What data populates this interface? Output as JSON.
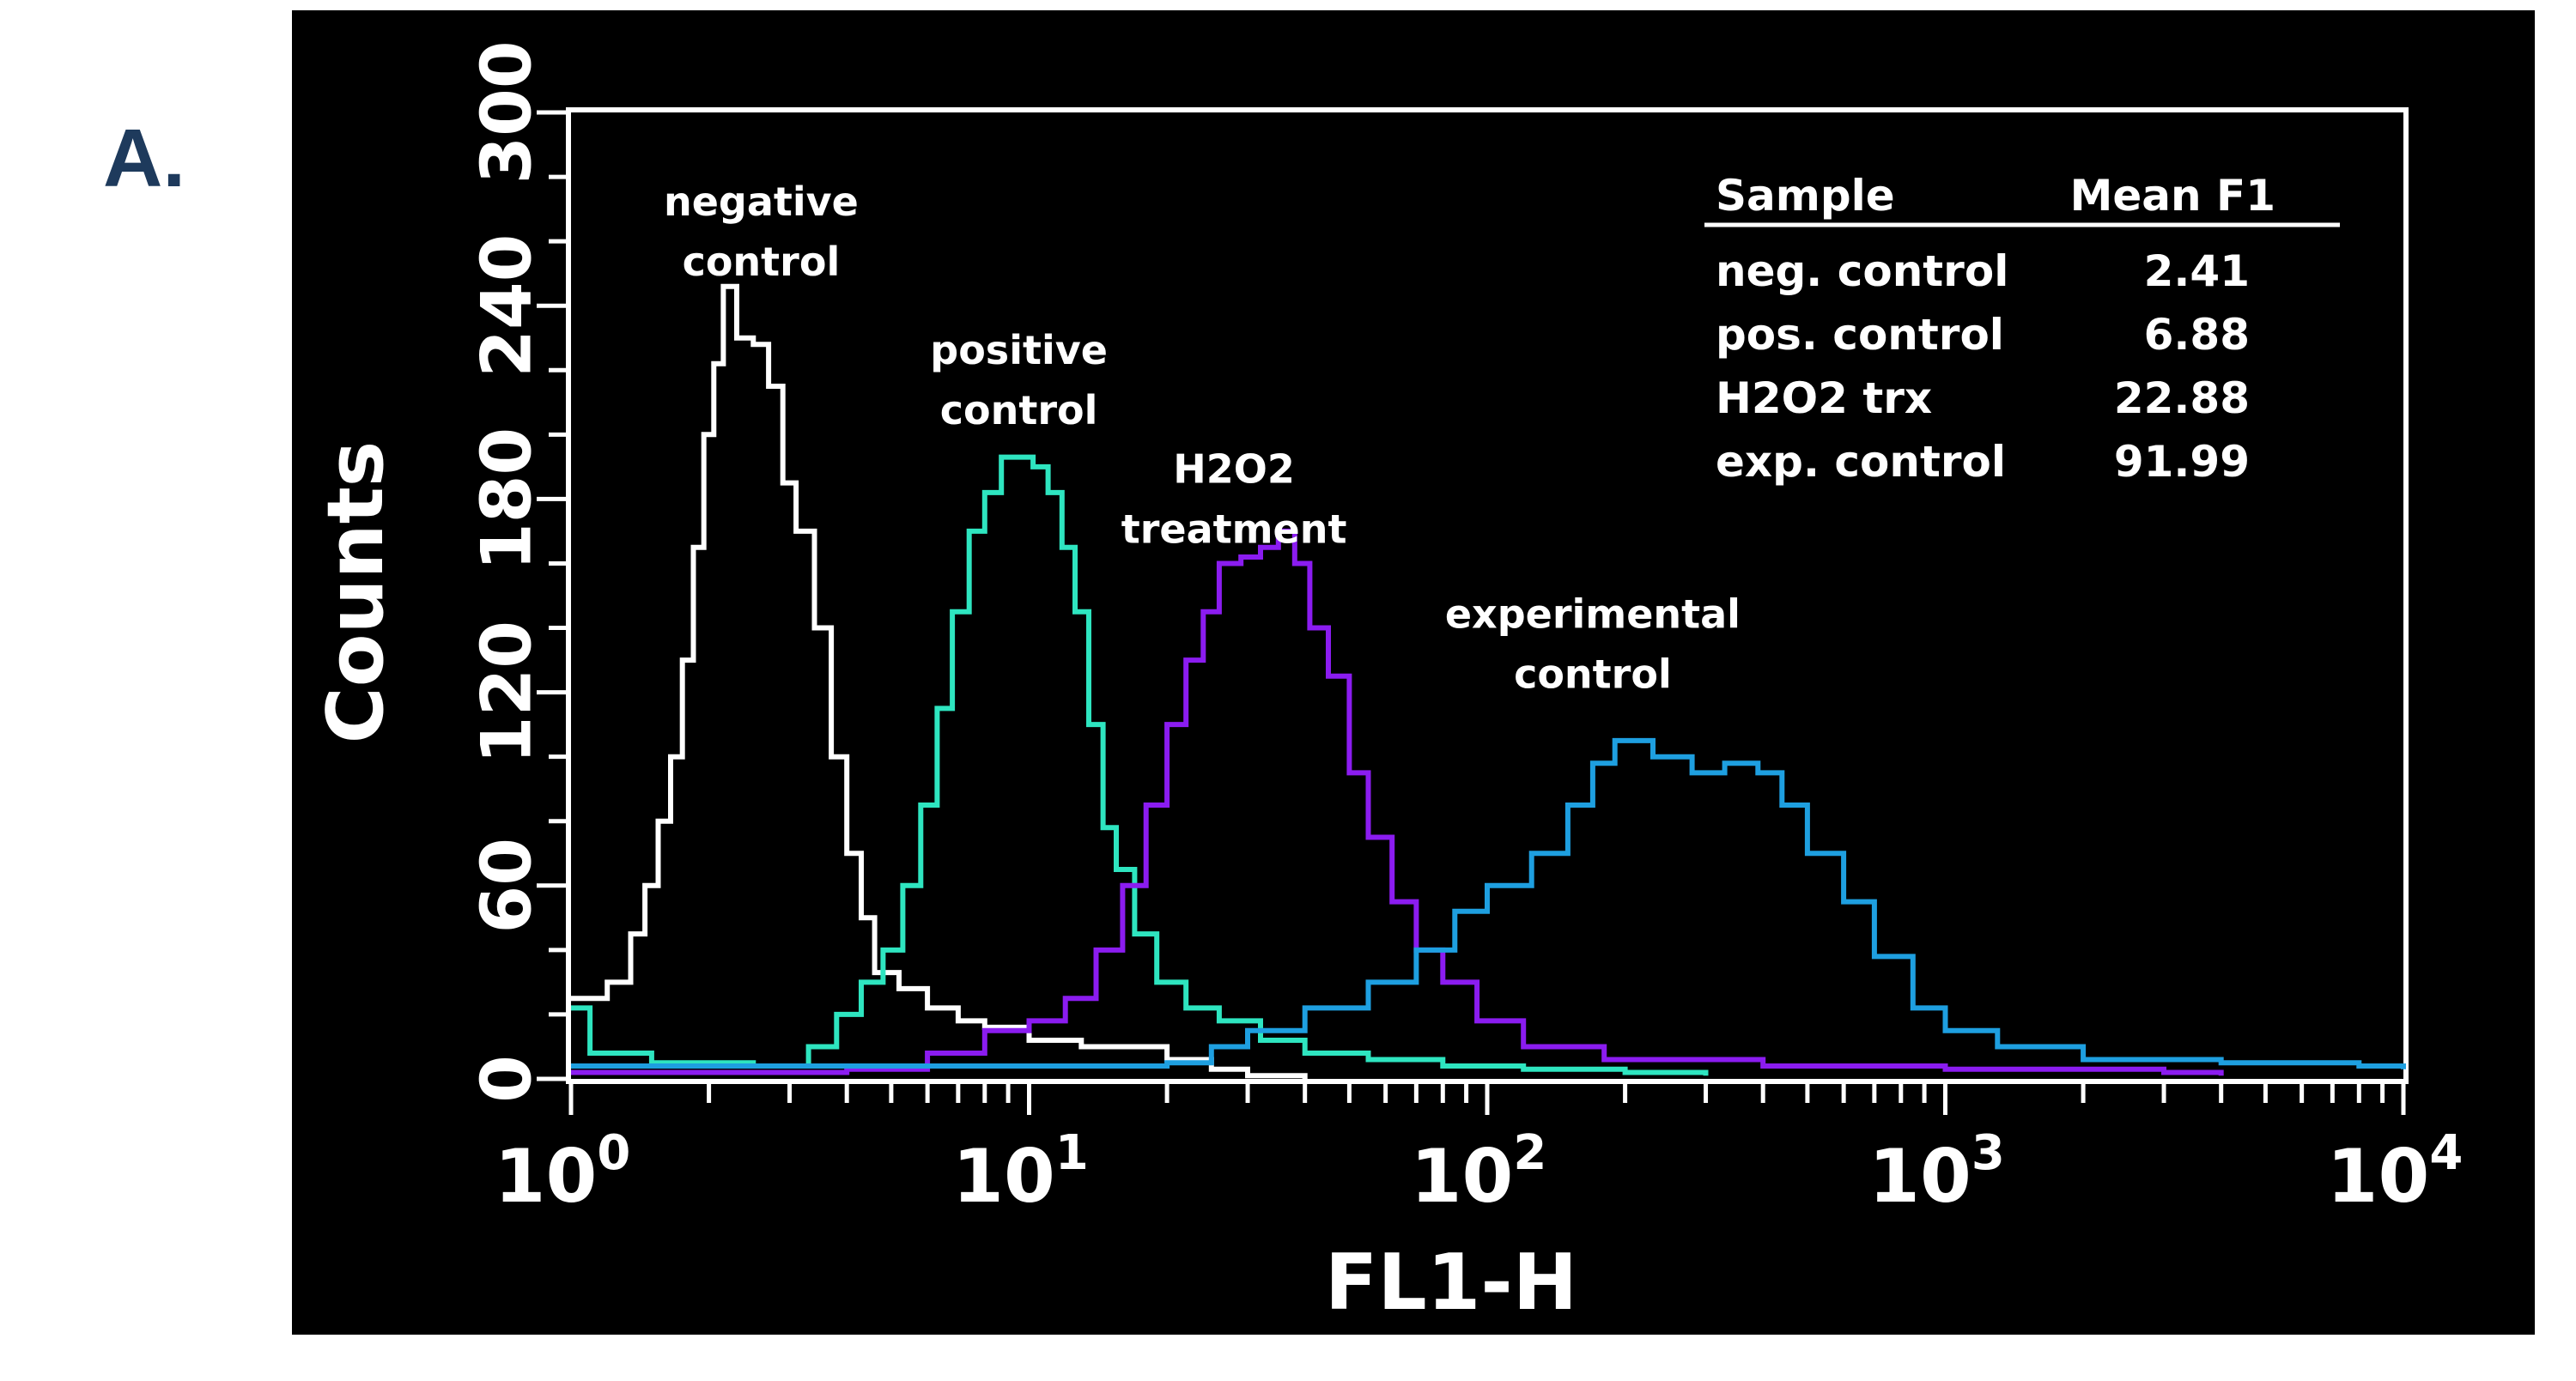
{
  "panel_label": "A.",
  "chart_data": {
    "type": "line",
    "xlabel": "FL1-H",
    "ylabel": "Counts",
    "xscale": "log",
    "xlim": [
      1,
      10000
    ],
    "ylim": [
      0,
      300
    ],
    "yticks": [
      0,
      60,
      120,
      180,
      240,
      300
    ],
    "xticks": [
      1,
      10,
      100,
      1000,
      10000
    ],
    "xtick_labels": [
      {
        "base": "10",
        "exp": "0"
      },
      {
        "base": "10",
        "exp": "1"
      },
      {
        "base": "10",
        "exp": "2"
      },
      {
        "base": "10",
        "exp": "3"
      },
      {
        "base": "10",
        "exp": "4"
      }
    ],
    "background": "#000000",
    "grid": false,
    "series": [
      {
        "name": "negative control",
        "color": "#ffffff",
        "label_lines": [
          "negative",
          "control"
        ],
        "label_anchor": [
          2.6,
          268
        ],
        "points": [
          [
            1.0,
            25
          ],
          [
            1.2,
            30
          ],
          [
            1.35,
            45
          ],
          [
            1.45,
            60
          ],
          [
            1.55,
            80
          ],
          [
            1.65,
            100
          ],
          [
            1.75,
            130
          ],
          [
            1.85,
            165
          ],
          [
            1.95,
            200
          ],
          [
            2.05,
            222
          ],
          [
            2.15,
            246
          ],
          [
            2.3,
            230
          ],
          [
            2.5,
            228
          ],
          [
            2.7,
            215
          ],
          [
            2.9,
            185
          ],
          [
            3.1,
            170
          ],
          [
            3.4,
            140
          ],
          [
            3.7,
            100
          ],
          [
            4.0,
            70
          ],
          [
            4.3,
            50
          ],
          [
            4.6,
            33
          ],
          [
            5.2,
            28
          ],
          [
            6.0,
            22
          ],
          [
            7.0,
            18
          ],
          [
            8.0,
            16
          ],
          [
            10.0,
            12
          ],
          [
            13.0,
            10
          ],
          [
            16.0,
            10
          ],
          [
            20.0,
            6
          ],
          [
            25.0,
            3
          ],
          [
            30.0,
            1
          ],
          [
            40.0,
            0
          ]
        ]
      },
      {
        "name": "positive control",
        "color": "#2ee5c0",
        "label_lines": [
          "positive",
          "control"
        ],
        "label_anchor": [
          9.5,
          222
        ],
        "points": [
          [
            1.0,
            22
          ],
          [
            1.1,
            8
          ],
          [
            1.5,
            5
          ],
          [
            2.5,
            4
          ],
          [
            3.3,
            10
          ],
          [
            3.8,
            20
          ],
          [
            4.3,
            30
          ],
          [
            4.8,
            40
          ],
          [
            5.3,
            60
          ],
          [
            5.8,
            85
          ],
          [
            6.3,
            115
          ],
          [
            6.8,
            145
          ],
          [
            7.4,
            170
          ],
          [
            8.0,
            182
          ],
          [
            8.7,
            193
          ],
          [
            9.5,
            193
          ],
          [
            10.2,
            190
          ],
          [
            11.0,
            182
          ],
          [
            11.8,
            165
          ],
          [
            12.6,
            145
          ],
          [
            13.5,
            110
          ],
          [
            14.5,
            78
          ],
          [
            15.5,
            65
          ],
          [
            17.0,
            45
          ],
          [
            19.0,
            30
          ],
          [
            22.0,
            22
          ],
          [
            26.0,
            18
          ],
          [
            32.0,
            12
          ],
          [
            40.0,
            8
          ],
          [
            55.0,
            6
          ],
          [
            80.0,
            4
          ],
          [
            120.0,
            3
          ],
          [
            200.0,
            2
          ],
          [
            300.0,
            1
          ]
        ]
      },
      {
        "name": "H2O2 treatment",
        "color": "#8b1cf0",
        "label_lines": [
          "H2O2",
          "treatment"
        ],
        "label_anchor": [
          28,
          185
        ],
        "points": [
          [
            1.0,
            2
          ],
          [
            2.0,
            2
          ],
          [
            4.0,
            3
          ],
          [
            6.0,
            8
          ],
          [
            8.0,
            15
          ],
          [
            10.0,
            18
          ],
          [
            12.0,
            25
          ],
          [
            14.0,
            40
          ],
          [
            16.0,
            60
          ],
          [
            18.0,
            85
          ],
          [
            20.0,
            110
          ],
          [
            22.0,
            130
          ],
          [
            24.0,
            145
          ],
          [
            26.0,
            160
          ],
          [
            29.0,
            162
          ],
          [
            32.0,
            165
          ],
          [
            35.0,
            170
          ],
          [
            38.0,
            160
          ],
          [
            41.0,
            140
          ],
          [
            45.0,
            125
          ],
          [
            50.0,
            95
          ],
          [
            55.0,
            75
          ],
          [
            62.0,
            55
          ],
          [
            70.0,
            40
          ],
          [
            80.0,
            30
          ],
          [
            95.0,
            18
          ],
          [
            120.0,
            10
          ],
          [
            180.0,
            6
          ],
          [
            400.0,
            4
          ],
          [
            1000.0,
            3
          ],
          [
            3000.0,
            2
          ],
          [
            4000.0,
            1
          ]
        ]
      },
      {
        "name": "experimental control",
        "color": "#1e9fe0",
        "label_lines": [
          "experimental",
          "control"
        ],
        "label_anchor": [
          170,
          140
        ],
        "points": [
          [
            1.0,
            4
          ],
          [
            3.0,
            4
          ],
          [
            10.0,
            4
          ],
          [
            20.0,
            5
          ],
          [
            25.0,
            10
          ],
          [
            30.0,
            15
          ],
          [
            40.0,
            22
          ],
          [
            55.0,
            30
          ],
          [
            70.0,
            40
          ],
          [
            85.0,
            52
          ],
          [
            100.0,
            60
          ],
          [
            125.0,
            70
          ],
          [
            150.0,
            85
          ],
          [
            170.0,
            98
          ],
          [
            190.0,
            105
          ],
          [
            230.0,
            100
          ],
          [
            280.0,
            95
          ],
          [
            330.0,
            98
          ],
          [
            390.0,
            95
          ],
          [
            440.0,
            85
          ],
          [
            500.0,
            70
          ],
          [
            600.0,
            55
          ],
          [
            700.0,
            38
          ],
          [
            850.0,
            22
          ],
          [
            1000.0,
            15
          ],
          [
            1300.0,
            10
          ],
          [
            2000.0,
            6
          ],
          [
            4000.0,
            5
          ],
          [
            8000.0,
            4
          ],
          [
            10000.0,
            3
          ]
        ]
      }
    ],
    "table": {
      "headers": [
        "Sample",
        "Mean F1"
      ],
      "rows": [
        [
          "neg. control",
          "2.41"
        ],
        [
          "pos. control",
          "6.88"
        ],
        [
          "H2O2 trx",
          "22.88"
        ],
        [
          "exp. control",
          "91.99"
        ]
      ]
    }
  }
}
